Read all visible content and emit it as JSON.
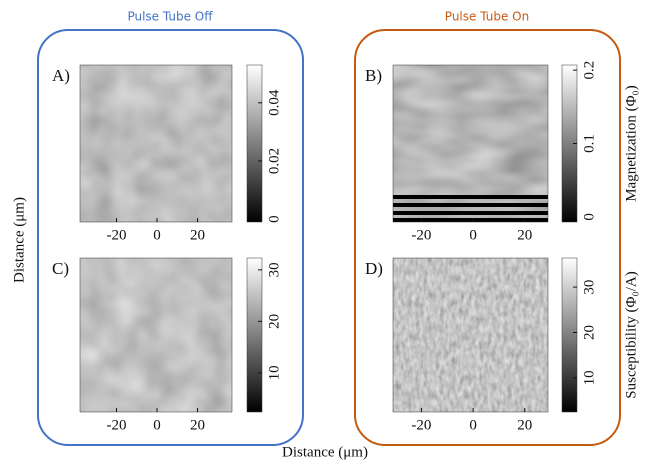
{
  "figure": {
    "group_titles": [
      "Pulse Tube Off",
      "Pulse Tube On"
    ],
    "x_label": "Distance (μm)",
    "y_label": "Distance (μm)"
  },
  "chart_data": [
    {
      "type": "image",
      "panel": "A)",
      "xlim": [
        -38,
        37
      ],
      "xticks": [
        -20,
        0,
        20
      ],
      "clim": [
        -0.001,
        0.053
      ],
      "cticks": [
        0,
        0.02,
        0.04
      ]
    },
    {
      "type": "image",
      "panel": "B)",
      "xlim": [
        -31,
        29
      ],
      "xticks": [
        -20,
        0,
        20
      ],
      "clim": [
        -0.007,
        0.207
      ],
      "cticks": [
        0,
        0.1,
        0.2
      ],
      "colorbar_label": "Magnetization (Φ₀)"
    },
    {
      "type": "image",
      "panel": "C)",
      "xlim": [
        -38,
        37
      ],
      "xticks": [
        -20,
        0,
        20
      ],
      "clim": [
        2.4,
        32.3
      ],
      "cticks": [
        10,
        20,
        30
      ]
    },
    {
      "type": "image",
      "panel": "D)",
      "xlim": [
        -31,
        29
      ],
      "xticks": [
        -20,
        0,
        20
      ],
      "clim": [
        2.5,
        36.4
      ],
      "cticks": [
        10,
        20,
        30
      ],
      "colorbar_label": "Susceptibility (Φ₀/A)"
    }
  ]
}
